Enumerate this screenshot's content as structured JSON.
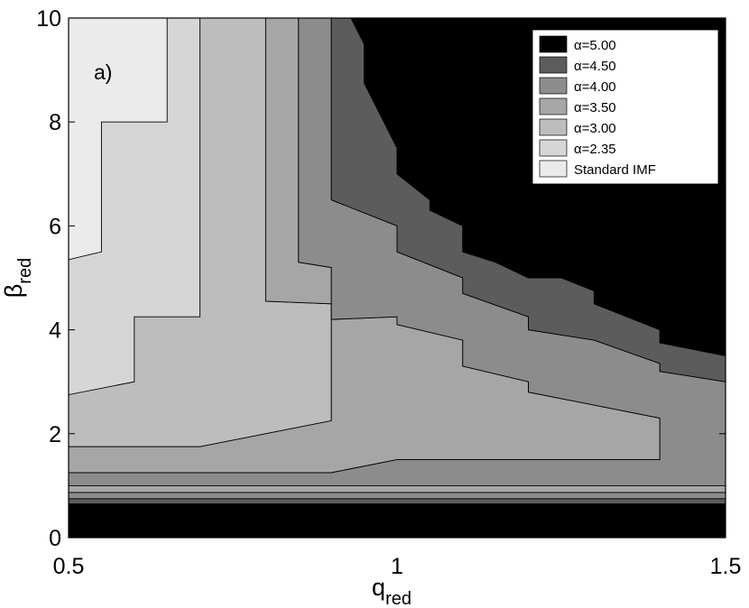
{
  "chart_data": {
    "type": "area",
    "panel_label": "a)",
    "xlabel": {
      "main": "q",
      "sub": "red"
    },
    "ylabel": {
      "main": "β",
      "sub": "red"
    },
    "xlim": [
      0.5,
      1.5
    ],
    "ylim": [
      0,
      10
    ],
    "xticks": [
      0.5,
      1,
      1.5
    ],
    "xtick_labels": [
      "0.5",
      "1",
      "1.5"
    ],
    "yticks": [
      0,
      2,
      4,
      6,
      8,
      10
    ],
    "ytick_labels": [
      "0",
      "2",
      "4",
      "6",
      "8",
      "10"
    ],
    "grid": false,
    "legend_position": "top-right",
    "series": [
      {
        "name": "Standard IMF",
        "color": "#ebebeb"
      },
      {
        "name": "α=2.35",
        "color": "#d6d6d6"
      },
      {
        "name": "α=3.00",
        "color": "#bdbdbd"
      },
      {
        "name": "α=3.50",
        "color": "#a6a6a6"
      },
      {
        "name": "α=4.00",
        "color": "#8c8c8c"
      },
      {
        "name": "α=4.50",
        "color": "#5c5c5c"
      },
      {
        "name": "α=5.00",
        "color": "#000000"
      }
    ],
    "legend_order": [
      "α=5.00",
      "α=4.50",
      "α=4.00",
      "α=3.50",
      "α=3.00",
      "α=2.35",
      "Standard IMF"
    ],
    "regions": [
      {
        "level": "Standard IMF",
        "points": [
          [
            0.5,
            10
          ],
          [
            1.5,
            10
          ],
          [
            1.5,
            0
          ],
          [
            0.5,
            0
          ]
        ]
      },
      {
        "level": "α=2.35",
        "points": [
          [
            0.5,
            2.75
          ],
          [
            0.5,
            0
          ],
          [
            1.5,
            0
          ],
          [
            1.5,
            10
          ],
          [
            0.65,
            10
          ],
          [
            0.65,
            8.0
          ],
          [
            0.55,
            8.0
          ],
          [
            0.55,
            7.75
          ],
          [
            0.55,
            5.5
          ],
          [
            0.5,
            5.35
          ]
        ]
      },
      {
        "level": "α=3.00",
        "points": [
          [
            0.7,
            10
          ],
          [
            0.7,
            4.25
          ],
          [
            0.6,
            4.25
          ],
          [
            0.6,
            4.0
          ],
          [
            0.6,
            3.0
          ],
          [
            0.5,
            2.75
          ],
          [
            0.5,
            1.75
          ],
          [
            0.7,
            1.75
          ],
          [
            0.9,
            2.25
          ],
          [
            0.9,
            4.5
          ],
          [
            0.8,
            4.55
          ],
          [
            0.8,
            10
          ]
        ]
      },
      {
        "level": "α=3.50",
        "points": [
          [
            0.8,
            10
          ],
          [
            0.8,
            4.55
          ],
          [
            0.9,
            4.5
          ],
          [
            0.9,
            2.25
          ],
          [
            0.7,
            1.75
          ],
          [
            0.5,
            1.75
          ],
          [
            0.5,
            1.25
          ],
          [
            0.9,
            1.25
          ],
          [
            1.0,
            1.5
          ],
          [
            1.4,
            1.5
          ],
          [
            1.4,
            2.3
          ],
          [
            1.2,
            2.8
          ],
          [
            1.2,
            3.0
          ],
          [
            1.1,
            3.3
          ],
          [
            1.1,
            3.8
          ],
          [
            1.0,
            4.1
          ],
          [
            1.0,
            4.25
          ],
          [
            0.9,
            4.2
          ],
          [
            0.9,
            5.2
          ],
          [
            0.85,
            5.3
          ],
          [
            0.85,
            10
          ]
        ]
      },
      {
        "level": "α=4.00",
        "points": [
          [
            0.85,
            10
          ],
          [
            0.85,
            5.3
          ],
          [
            0.9,
            5.2
          ],
          [
            0.9,
            4.2
          ],
          [
            1.0,
            4.25
          ],
          [
            1.0,
            4.1
          ],
          [
            1.1,
            3.8
          ],
          [
            1.1,
            3.3
          ],
          [
            1.2,
            3.0
          ],
          [
            1.2,
            2.8
          ],
          [
            1.4,
            2.3
          ],
          [
            1.4,
            1.5
          ],
          [
            1.0,
            1.5
          ],
          [
            0.9,
            1.25
          ],
          [
            0.5,
            1.25
          ],
          [
            0.5,
            1.0
          ],
          [
            1.5,
            1.0
          ],
          [
            1.5,
            3.0
          ],
          [
            1.4,
            3.2
          ],
          [
            1.4,
            3.35
          ],
          [
            1.3,
            3.8
          ],
          [
            1.2,
            4.0
          ],
          [
            1.2,
            4.25
          ],
          [
            1.1,
            4.7
          ],
          [
            1.1,
            5.0
          ],
          [
            1.0,
            5.5
          ],
          [
            1.0,
            6.0
          ],
          [
            0.9,
            6.5
          ],
          [
            0.9,
            10
          ]
        ]
      },
      {
        "level": "α=4.50",
        "points": [
          [
            0.9,
            10
          ],
          [
            0.9,
            6.5
          ],
          [
            1.0,
            6.0
          ],
          [
            1.0,
            5.5
          ],
          [
            1.1,
            5.0
          ],
          [
            1.1,
            4.7
          ],
          [
            1.2,
            4.25
          ],
          [
            1.2,
            4.0
          ],
          [
            1.3,
            3.8
          ],
          [
            1.4,
            3.35
          ],
          [
            1.4,
            3.2
          ],
          [
            1.5,
            3.0
          ],
          [
            1.5,
            3.5
          ],
          [
            1.4,
            3.75
          ],
          [
            1.4,
            4.0
          ],
          [
            1.3,
            4.5
          ],
          [
            1.3,
            4.75
          ],
          [
            1.25,
            5.0
          ],
          [
            1.2,
            5.0
          ],
          [
            1.15,
            5.3
          ],
          [
            1.1,
            5.5
          ],
          [
            1.1,
            6.0
          ],
          [
            1.05,
            6.3
          ],
          [
            1.05,
            6.5
          ],
          [
            1.0,
            7.0
          ],
          [
            1.0,
            7.5
          ],
          [
            0.95,
            8.75
          ],
          [
            0.95,
            9.5
          ],
          [
            0.93,
            10
          ]
        ]
      },
      {
        "level": "α=5.00",
        "points": [
          [
            0.93,
            10
          ],
          [
            0.95,
            9.5
          ],
          [
            0.95,
            8.75
          ],
          [
            1.0,
            7.5
          ],
          [
            1.0,
            7.0
          ],
          [
            1.05,
            6.5
          ],
          [
            1.05,
            6.3
          ],
          [
            1.1,
            6.0
          ],
          [
            1.1,
            5.5
          ],
          [
            1.15,
            5.3
          ],
          [
            1.2,
            5.0
          ],
          [
            1.25,
            5.0
          ],
          [
            1.3,
            4.75
          ],
          [
            1.3,
            4.5
          ],
          [
            1.4,
            4.0
          ],
          [
            1.4,
            3.75
          ],
          [
            1.5,
            3.5
          ],
          [
            1.5,
            10
          ]
        ]
      },
      {
        "level": "α=5.00",
        "points": [
          [
            0.5,
            0
          ],
          [
            1.5,
            0
          ],
          [
            1.5,
            0.65
          ],
          [
            0.5,
            0.65
          ]
        ]
      },
      {
        "level": "α=4.50",
        "points": [
          [
            0.5,
            0.65
          ],
          [
            1.5,
            0.65
          ],
          [
            1.5,
            0.75
          ],
          [
            0.5,
            0.75
          ]
        ]
      },
      {
        "level": "α=4.00",
        "points": [
          [
            0.5,
            0.75
          ],
          [
            1.5,
            0.75
          ],
          [
            1.5,
            0.87
          ],
          [
            0.5,
            0.87
          ]
        ]
      },
      {
        "level": "α=3.50",
        "points": [
          [
            0.5,
            0.87
          ],
          [
            1.5,
            0.87
          ],
          [
            1.5,
            1.0
          ],
          [
            0.5,
            1.0
          ]
        ]
      }
    ]
  }
}
